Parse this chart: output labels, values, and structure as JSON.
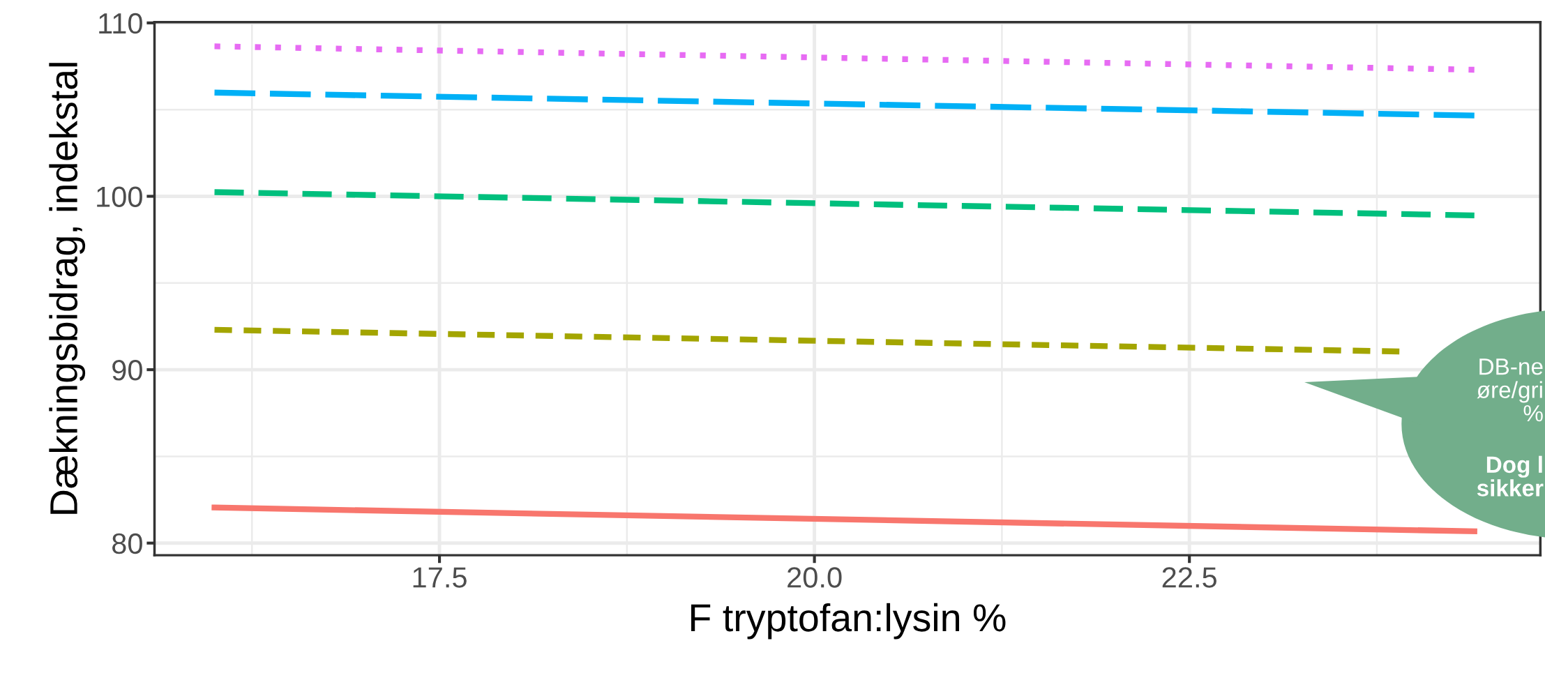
{
  "chart_data": {
    "type": "line",
    "xlabel": "F tryptofan:lysin %",
    "ylabel": "Dækningsbidrag, indekstal",
    "x": [
      16.0,
      24.4
    ],
    "series": [
      {
        "color": "#f8766d",
        "line_style": "solid",
        "values": [
          82.05,
          80.68
        ]
      },
      {
        "color": "#a3a500",
        "line_style": "dashed",
        "x": [
          16.0,
          23.9
        ],
        "values": [
          92.3,
          91.05
        ]
      },
      {
        "color": "#00bf7d",
        "line_style": "dashed",
        "values": [
          100.24,
          98.9
        ]
      },
      {
        "color": "#00b0f6",
        "line_style": "dashed",
        "values": [
          105.98,
          104.66
        ]
      },
      {
        "color": "#e76bf3",
        "line_style": "dotted",
        "values": [
          108.65,
          107.3
        ]
      }
    ],
    "xlim": [
      15.6,
      24.84
    ],
    "ylim": [
      79.3,
      110.04
    ],
    "xticks": [
      17.5,
      {
        "value": 20.0,
        "label": "20.0"
      },
      22.5
    ],
    "yticks": [
      80,
      90,
      100,
      110
    ],
    "grid": true,
    "legend": false,
    "annotations": [
      "DB-ne\nøre/gri\n%",
      "Dog l\nsikker"
    ]
  }
}
